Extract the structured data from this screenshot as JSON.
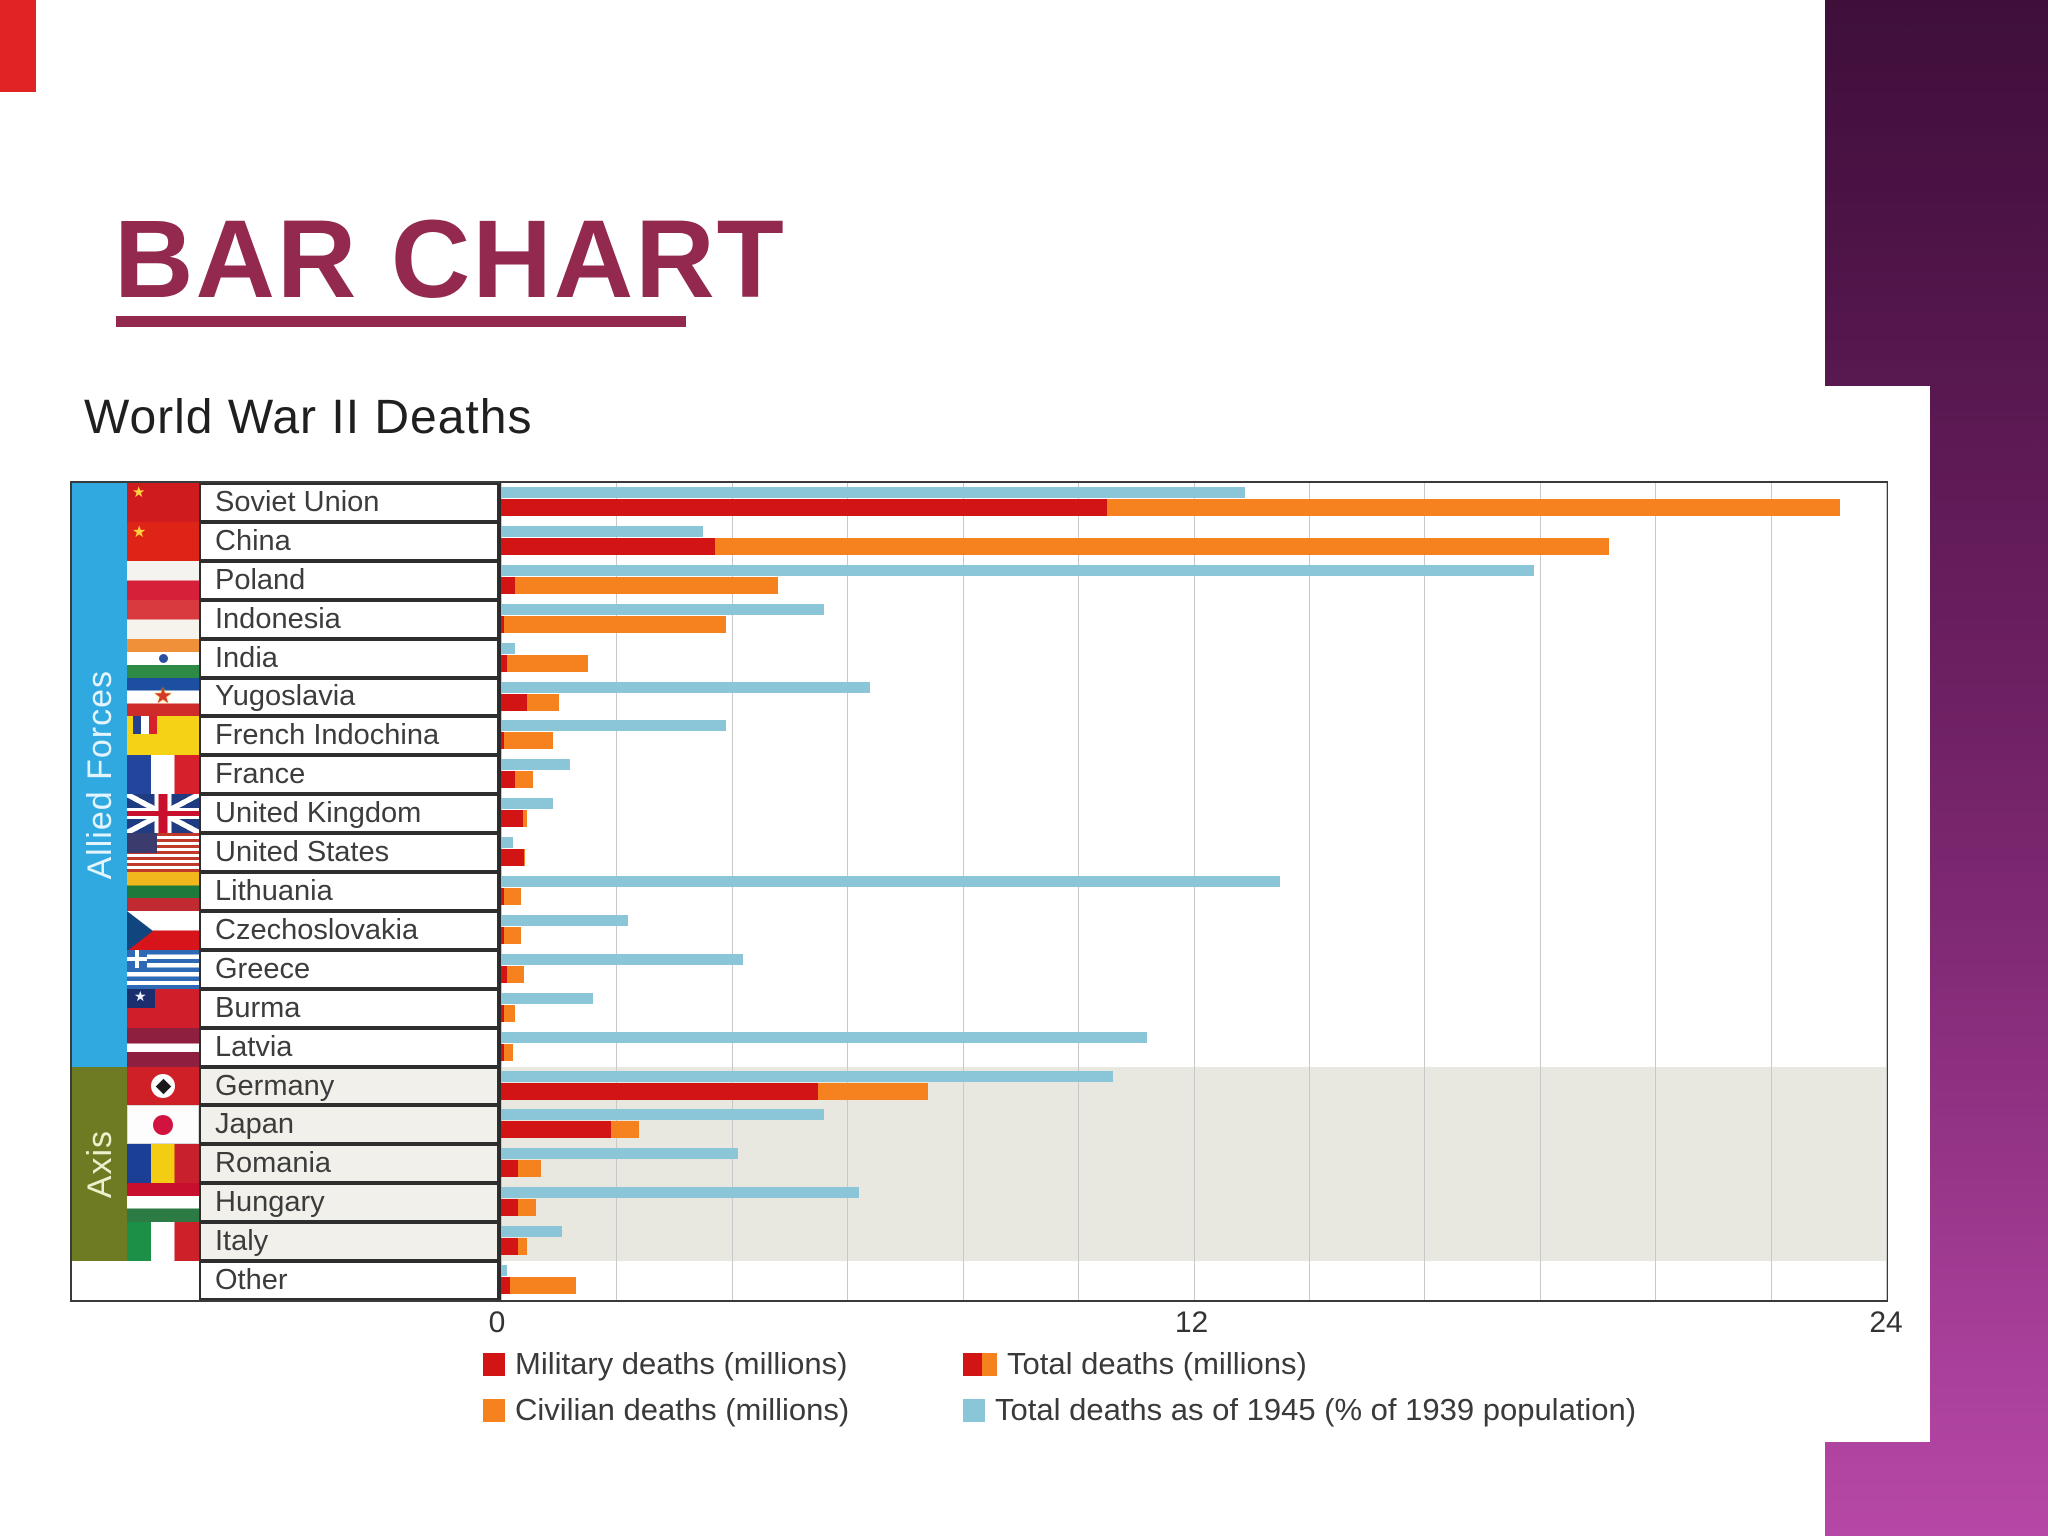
{
  "slide": {
    "title": "BAR CHART",
    "accent_color": "#93294e",
    "sidebar_gradient_top": "#3f0f3a",
    "sidebar_gradient_bottom": "#b747a6"
  },
  "chart_data": {
    "type": "bar",
    "orientation": "horizontal",
    "title": "World War II Deaths",
    "x_axis": {
      "ticks": [
        0,
        12,
        24
      ],
      "min": 0,
      "max": 24,
      "gridline_interval": 2
    },
    "grid": true,
    "legend_position": "bottom",
    "series": [
      {
        "name": "Military deaths (millions)",
        "color": "#d31414",
        "swatch": "solid"
      },
      {
        "name": "Civilian deaths (millions)",
        "color": "#f5821f",
        "swatch": "solid"
      },
      {
        "name": "Total deaths (millions)",
        "colors": [
          "#d31414",
          "#f5821f"
        ],
        "swatch": "split"
      },
      {
        "name": "Total deaths as of 1945 (% of 1939 population)",
        "color": "#8ac6d8",
        "swatch": "solid"
      }
    ],
    "groups": [
      {
        "label": "Allied Forces",
        "row_start": 0,
        "row_end": 14,
        "color": "#2fa9e0",
        "text_color": "#e2f4fd",
        "plot_shade": null
      },
      {
        "label": "Axis",
        "row_start": 15,
        "row_end": 19,
        "color": "#6e7b22",
        "text_color": "#edefcd",
        "plot_shade": "#e9e8e0"
      }
    ],
    "rows": [
      {
        "country": "Soviet Union",
        "group": "Allied Forces",
        "flag": "soviet-union",
        "military_deaths_millions": 10.5,
        "civilian_deaths_millions": 12.7,
        "total_deaths_millions": 23.2,
        "total_deaths_pct_1939_population": 12.9
      },
      {
        "country": "China",
        "group": "Allied Forces",
        "flag": "china",
        "military_deaths_millions": 3.7,
        "civilian_deaths_millions": 15.5,
        "total_deaths_millions": 19.2,
        "total_deaths_pct_1939_population": 3.5
      },
      {
        "country": "Poland",
        "group": "Allied Forces",
        "flag": "poland",
        "military_deaths_millions": 0.25,
        "civilian_deaths_millions": 4.55,
        "total_deaths_millions": 4.8,
        "total_deaths_pct_1939_population": 17.9
      },
      {
        "country": "Indonesia",
        "group": "Allied Forces",
        "flag": "indonesia",
        "military_deaths_millions": 0.05,
        "civilian_deaths_millions": 3.85,
        "total_deaths_millions": 3.9,
        "total_deaths_pct_1939_population": 5.6
      },
      {
        "country": "India",
        "group": "Allied Forces",
        "flag": "india",
        "military_deaths_millions": 0.1,
        "civilian_deaths_millions": 1.4,
        "total_deaths_millions": 1.5,
        "total_deaths_pct_1939_population": 0.25
      },
      {
        "country": "Yugoslavia",
        "group": "Allied Forces",
        "flag": "yugoslavia",
        "military_deaths_millions": 0.45,
        "civilian_deaths_millions": 0.55,
        "total_deaths_millions": 1.0,
        "total_deaths_pct_1939_population": 6.4
      },
      {
        "country": "French Indochina",
        "group": "Allied Forces",
        "flag": "french-indochina",
        "military_deaths_millions": 0.05,
        "civilian_deaths_millions": 0.85,
        "total_deaths_millions": 0.9,
        "total_deaths_pct_1939_population": 3.9
      },
      {
        "country": "France",
        "group": "Allied Forces",
        "flag": "france",
        "military_deaths_millions": 0.25,
        "civilian_deaths_millions": 0.3,
        "total_deaths_millions": 0.55,
        "total_deaths_pct_1939_population": 1.2
      },
      {
        "country": "United Kingdom",
        "group": "Allied Forces",
        "flag": "united-kingdom",
        "military_deaths_millions": 0.38,
        "civilian_deaths_millions": 0.07,
        "total_deaths_millions": 0.45,
        "total_deaths_pct_1939_population": 0.9
      },
      {
        "country": "United States",
        "group": "Allied Forces",
        "flag": "united-states",
        "military_deaths_millions": 0.4,
        "civilian_deaths_millions": 0.02,
        "total_deaths_millions": 0.42,
        "total_deaths_pct_1939_population": 0.2
      },
      {
        "country": "Lithuania",
        "group": "Allied Forces",
        "flag": "lithuania",
        "military_deaths_millions": 0.05,
        "civilian_deaths_millions": 0.3,
        "total_deaths_millions": 0.35,
        "total_deaths_pct_1939_population": 13.5
      },
      {
        "country": "Czechoslovakia",
        "group": "Allied Forces",
        "flag": "czechoslovakia",
        "military_deaths_millions": 0.05,
        "civilian_deaths_millions": 0.3,
        "total_deaths_millions": 0.35,
        "total_deaths_pct_1939_population": 2.2
      },
      {
        "country": "Greece",
        "group": "Allied Forces",
        "flag": "greece",
        "military_deaths_millions": 0.1,
        "civilian_deaths_millions": 0.3,
        "total_deaths_millions": 0.4,
        "total_deaths_pct_1939_population": 4.2
      },
      {
        "country": "Burma",
        "group": "Allied Forces",
        "flag": "burma",
        "military_deaths_millions": 0.05,
        "civilian_deaths_millions": 0.2,
        "total_deaths_millions": 0.25,
        "total_deaths_pct_1939_population": 1.6
      },
      {
        "country": "Latvia",
        "group": "Allied Forces",
        "flag": "latvia",
        "military_deaths_millions": 0.05,
        "civilian_deaths_millions": 0.15,
        "total_deaths_millions": 0.2,
        "total_deaths_pct_1939_population": 11.2
      },
      {
        "country": "Germany",
        "group": "Axis",
        "flag": "germany",
        "military_deaths_millions": 5.5,
        "civilian_deaths_millions": 1.9,
        "total_deaths_millions": 7.4,
        "total_deaths_pct_1939_population": 10.6
      },
      {
        "country": "Japan",
        "group": "Axis",
        "flag": "japan",
        "military_deaths_millions": 1.9,
        "civilian_deaths_millions": 0.5,
        "total_deaths_millions": 2.4,
        "total_deaths_pct_1939_population": 5.6
      },
      {
        "country": "Romania",
        "group": "Axis",
        "flag": "romania",
        "military_deaths_millions": 0.3,
        "civilian_deaths_millions": 0.4,
        "total_deaths_millions": 0.7,
        "total_deaths_pct_1939_population": 4.1
      },
      {
        "country": "Hungary",
        "group": "Axis",
        "flag": "hungary",
        "military_deaths_millions": 0.3,
        "civilian_deaths_millions": 0.3,
        "total_deaths_millions": 0.6,
        "total_deaths_pct_1939_population": 6.2
      },
      {
        "country": "Italy",
        "group": "Axis",
        "flag": "italy",
        "military_deaths_millions": 0.3,
        "civilian_deaths_millions": 0.15,
        "total_deaths_millions": 0.45,
        "total_deaths_pct_1939_population": 1.05
      },
      {
        "country": "Other",
        "group": null,
        "flag": "none",
        "military_deaths_millions": 0.15,
        "civilian_deaths_millions": 1.15,
        "total_deaths_millions": 1.3,
        "total_deaths_pct_1939_population": 0.1
      }
    ]
  }
}
